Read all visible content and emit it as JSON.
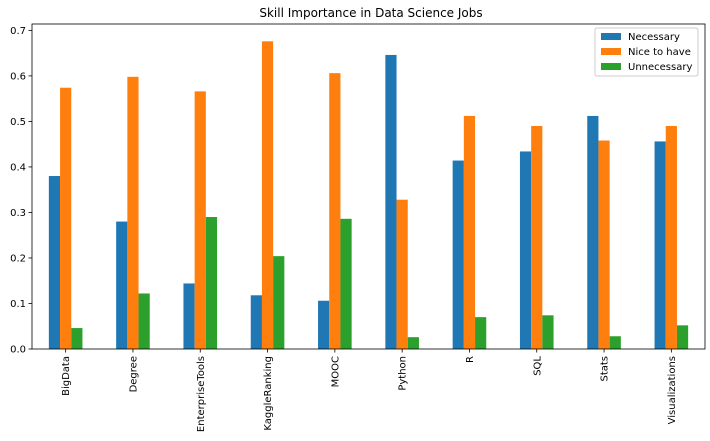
{
  "chart_data": {
    "type": "bar",
    "title": "Skill Importance in Data Science Jobs",
    "xlabel": "",
    "ylabel": "",
    "categories": [
      "BigData",
      "Degree",
      "EnterpriseTools",
      "KaggleRanking",
      "MOOC",
      "Python",
      "R",
      "SQL",
      "Stats",
      "Visualizations"
    ],
    "series": [
      {
        "name": "Necessary",
        "color": "#1f77b4",
        "values": [
          0.38,
          0.28,
          0.144,
          0.118,
          0.106,
          0.646,
          0.414,
          0.434,
          0.512,
          0.456
        ]
      },
      {
        "name": "Nice to have",
        "color": "#ff7f0e",
        "values": [
          0.574,
          0.598,
          0.566,
          0.676,
          0.606,
          0.328,
          0.512,
          0.49,
          0.458,
          0.49
        ]
      },
      {
        "name": "Unnecessary",
        "color": "#2ca02c",
        "values": [
          0.046,
          0.122,
          0.29,
          0.204,
          0.286,
          0.026,
          0.07,
          0.074,
          0.028,
          0.052
        ]
      }
    ],
    "ylim": [
      0,
      0.714
    ],
    "yticks": [
      0.0,
      0.1,
      0.2,
      0.3,
      0.4,
      0.5,
      0.6,
      0.7
    ],
    "ytick_labels": [
      "0.0",
      "0.1",
      "0.2",
      "0.3",
      "0.4",
      "0.5",
      "0.6",
      "0.7"
    ],
    "legend_position": "top-right",
    "grid": false
  }
}
